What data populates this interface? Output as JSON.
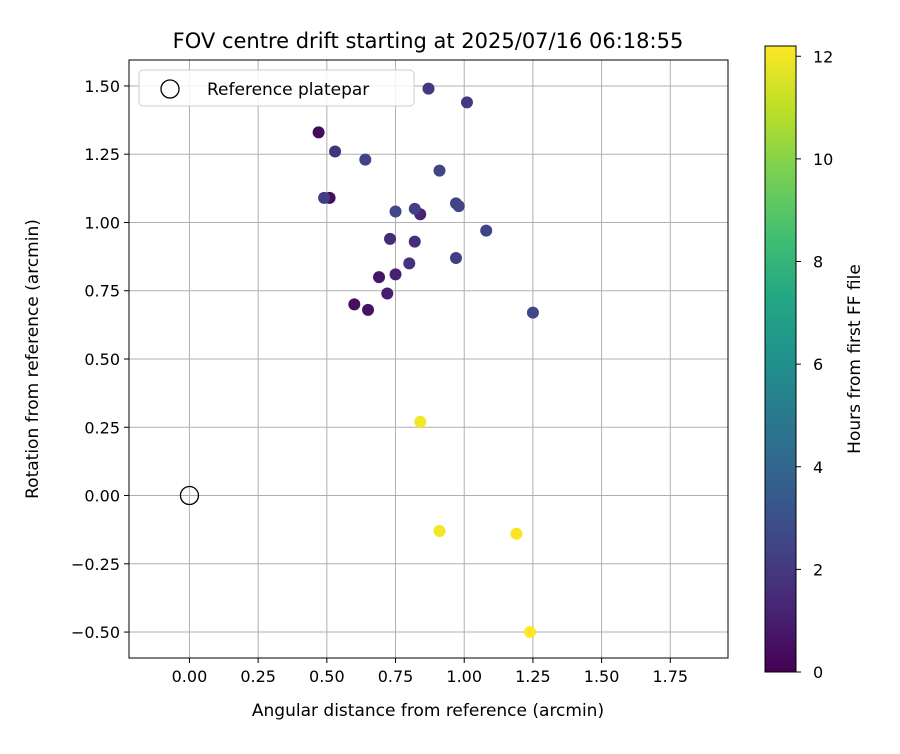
{
  "chart_data": {
    "type": "scatter",
    "title": "FOV centre drift starting at 2025/07/16 06:18:55",
    "xlabel": "Angular distance from reference (arcmin)",
    "ylabel": "Rotation from reference (arcmin)",
    "xlim": [
      -0.22,
      1.96
    ],
    "ylim": [
      -0.595,
      1.595
    ],
    "x_ticks": [
      "0.00",
      "0.25",
      "0.50",
      "0.75",
      "1.00",
      "1.25",
      "1.50",
      "1.75"
    ],
    "y_ticks": [
      "−0.50",
      "−0.25",
      "0.00",
      "0.25",
      "0.50",
      "0.75",
      "1.00",
      "1.25",
      "1.50"
    ],
    "grid": true,
    "legend": {
      "placement": "top-left",
      "entries": [
        "Reference platepar"
      ]
    },
    "reference_point": {
      "x": 0.0,
      "y": 0.0,
      "label": "Reference platepar"
    },
    "colorbar": {
      "label": "Hours from first FF file",
      "range": [
        0,
        12.2
      ],
      "ticks": [
        "0",
        "2",
        "4",
        "6",
        "8",
        "10",
        "12"
      ],
      "colormap": "viridis"
    },
    "points": [
      {
        "x": 0.47,
        "y": 1.33,
        "hours": 0.3
      },
      {
        "x": 0.51,
        "y": 1.09,
        "hours": 0.4
      },
      {
        "x": 0.6,
        "y": 0.7,
        "hours": 0.5
      },
      {
        "x": 0.65,
        "y": 0.68,
        "hours": 0.6
      },
      {
        "x": 0.69,
        "y": 0.8,
        "hours": 0.7
      },
      {
        "x": 0.72,
        "y": 0.74,
        "hours": 1.0
      },
      {
        "x": 0.75,
        "y": 0.81,
        "hours": 1.1
      },
      {
        "x": 0.84,
        "y": 1.03,
        "hours": 1.2
      },
      {
        "x": 0.73,
        "y": 0.94,
        "hours": 1.5
      },
      {
        "x": 0.82,
        "y": 0.93,
        "hours": 1.6
      },
      {
        "x": 0.8,
        "y": 0.85,
        "hours": 1.7
      },
      {
        "x": 0.53,
        "y": 1.26,
        "hours": 1.8
      },
      {
        "x": 0.87,
        "y": 1.49,
        "hours": 1.9
      },
      {
        "x": 1.01,
        "y": 1.44,
        "hours": 2.0
      },
      {
        "x": 0.49,
        "y": 1.09,
        "hours": 2.2
      },
      {
        "x": 0.64,
        "y": 1.23,
        "hours": 2.4
      },
      {
        "x": 0.82,
        "y": 1.05,
        "hours": 2.3
      },
      {
        "x": 0.75,
        "y": 1.04,
        "hours": 2.6
      },
      {
        "x": 0.97,
        "y": 1.07,
        "hours": 2.4
      },
      {
        "x": 0.98,
        "y": 1.06,
        "hours": 2.5
      },
      {
        "x": 0.91,
        "y": 1.19,
        "hours": 2.5
      },
      {
        "x": 1.08,
        "y": 0.97,
        "hours": 2.4
      },
      {
        "x": 0.97,
        "y": 0.87,
        "hours": 2.3
      },
      {
        "x": 1.25,
        "y": 0.67,
        "hours": 2.6
      },
      {
        "x": 0.84,
        "y": 0.27,
        "hours": 12.0
      },
      {
        "x": 0.91,
        "y": -0.13,
        "hours": 12.0
      },
      {
        "x": 1.19,
        "y": -0.14,
        "hours": 12.1
      },
      {
        "x": 1.24,
        "y": -0.5,
        "hours": 12.2
      }
    ]
  }
}
